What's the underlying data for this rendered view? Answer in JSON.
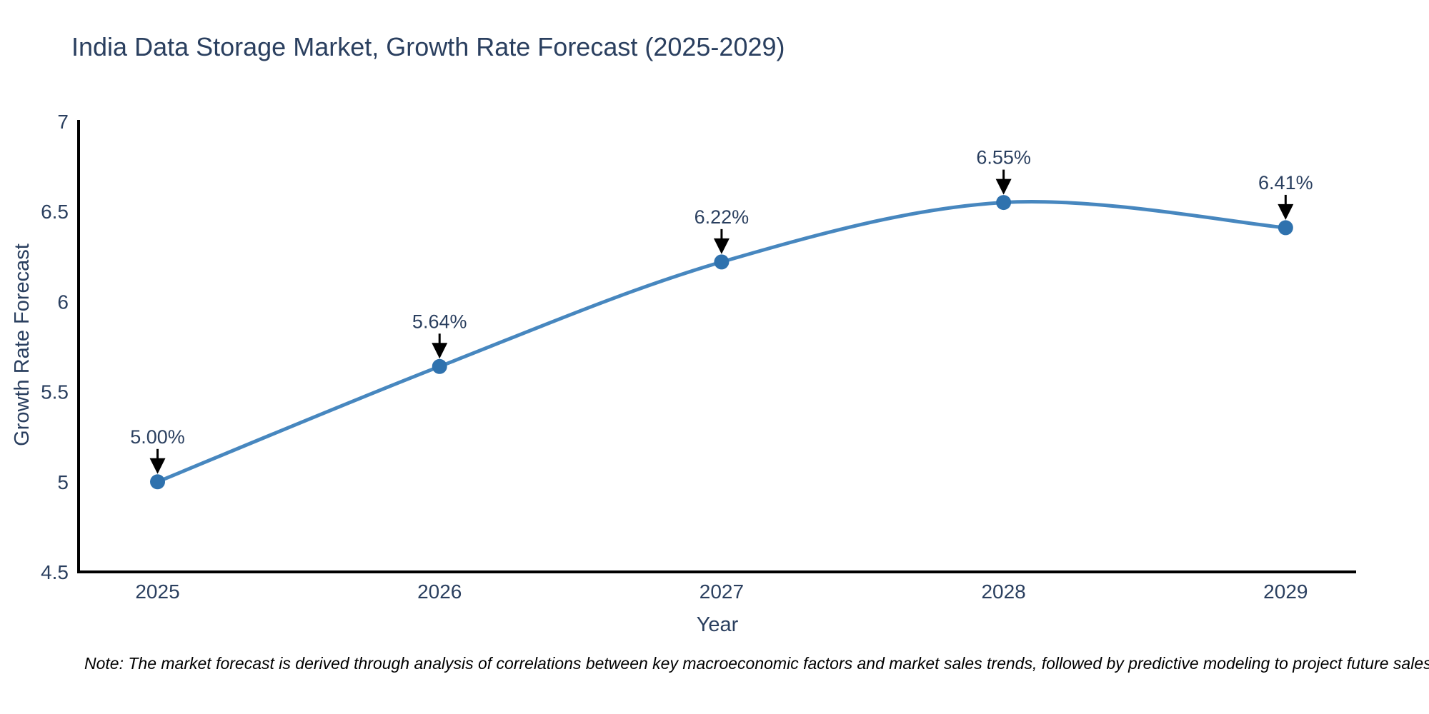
{
  "chart_data": {
    "type": "line",
    "title": "India Data Storage Market, Growth Rate Forecast (2025-2029)",
    "xlabel": "Year",
    "ylabel": "Growth Rate Forecast",
    "x": [
      2025,
      2026,
      2027,
      2028,
      2029
    ],
    "series": [
      {
        "name": "Growth Rate Forecast",
        "values": [
          5.0,
          5.64,
          6.22,
          6.55,
          6.41
        ]
      }
    ],
    "point_labels": [
      "5.00%",
      "5.64%",
      "6.22%",
      "6.55%",
      "6.41%"
    ],
    "xticks": [
      "2025",
      "2026",
      "2027",
      "2028",
      "2029"
    ],
    "yticks": [
      "4.5",
      "5",
      "5.5",
      "6",
      "6.5",
      "7"
    ],
    "ytick_values": [
      4.5,
      5,
      5.5,
      6,
      6.5,
      7
    ],
    "ylim": [
      4.5,
      7
    ],
    "xlim": [
      2024.72,
      2029.25
    ],
    "line_shape": "spline",
    "grid": false,
    "legend": "none",
    "colors": {
      "line": "#4787bf",
      "marker": "#2f72ae",
      "axis": "#000000",
      "text": "#2a3f5f",
      "annotation_arrow": "#000000"
    }
  },
  "footnote": "Note: The market forecast is derived through analysis of correlations between key macroeconomic factors and market sales trends, followed by predictive modeling to project future sales"
}
